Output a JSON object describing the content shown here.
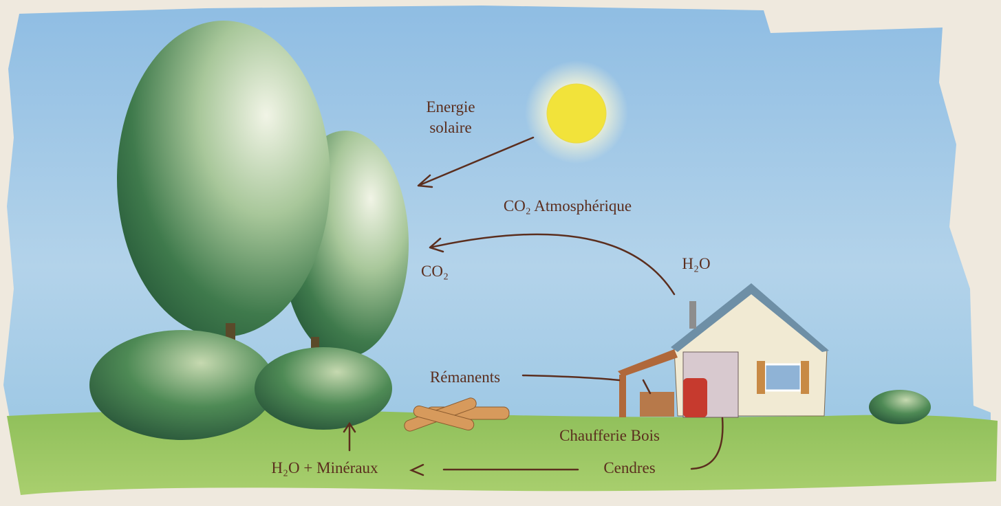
{
  "labels": {
    "solar_energy": [
      "Energie",
      "solaire"
    ],
    "co2_atmospheric": "CO₂ Atmosphérique",
    "co2": "CO₂",
    "h2o": "H₂O",
    "residues": "Rémanents",
    "boiler": "Chaufferie Bois",
    "ashes": "Cendres",
    "h2o_minerals": "H₂O + Minéraux"
  }
}
